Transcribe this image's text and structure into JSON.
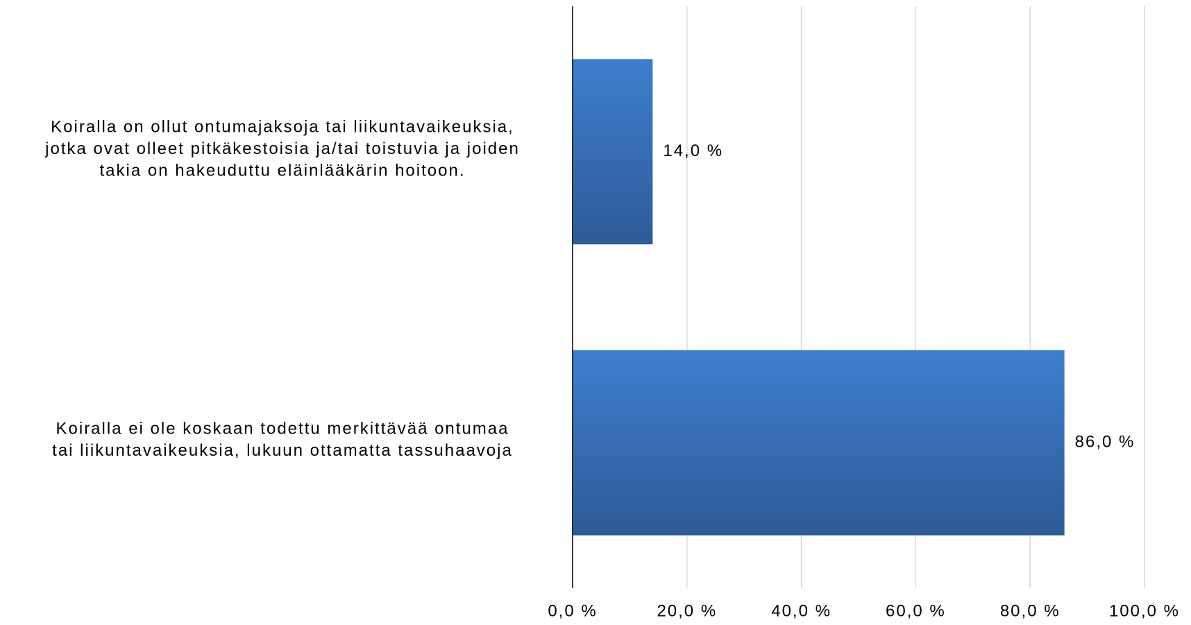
{
  "chart_data": {
    "type": "bar",
    "orientation": "horizontal",
    "categories": [
      "Koiralla on ollut ontumajaksoja tai liikuntavaikeuksia,\njotka ovat olleet pitkäkestoisia ja/tai toistuvia ja joiden\ntakia on hakeuduttu eläinlääkärin hoitoon.",
      "Koiralla ei ole koskaan todettu merkittävää ontumaa\ntai liikuntavaikeuksia, lukuun ottamatta tassuhaavoja"
    ],
    "values": [
      14,
      86
    ],
    "value_labels": [
      "14,0 %",
      "86,0 %"
    ],
    "color": "#3a76c2",
    "xlim": [
      0,
      100
    ],
    "xticks": [
      {
        "value": 0,
        "label": "0,0 %"
      },
      {
        "value": 20,
        "label": "20,0 %"
      },
      {
        "value": 40,
        "label": "40,0 %"
      },
      {
        "value": 60,
        "label": "60,0 %"
      },
      {
        "value": 80,
        "label": "80,0 %"
      },
      {
        "value": 100,
        "label": "100,0 %"
      }
    ],
    "grid": true
  }
}
